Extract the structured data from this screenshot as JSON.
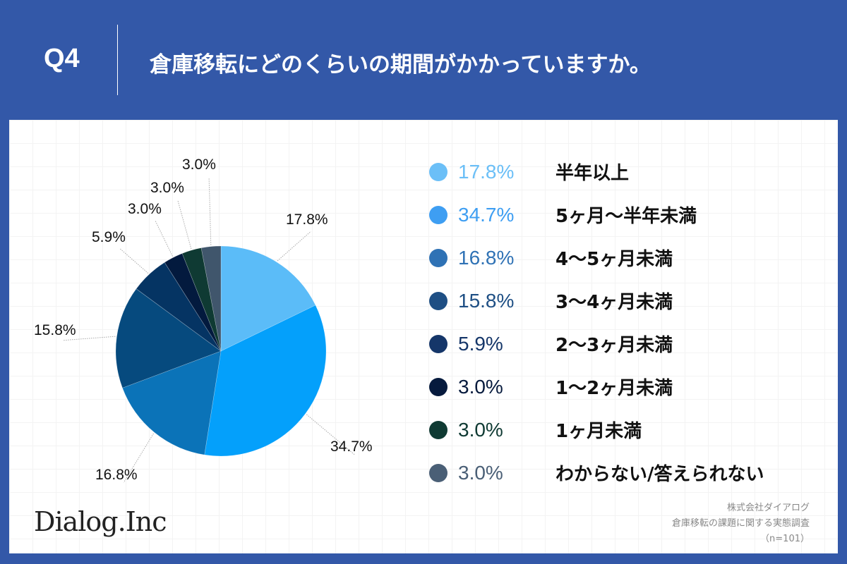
{
  "header": {
    "question_number": "Q4",
    "question_text": "倉庫移転にどのくらいの期間がかかっていますか。"
  },
  "chart_data": {
    "type": "pie",
    "title": "倉庫移転にどのくらいの期間がかかっていますか。",
    "start_angle": "12 o'clock, clockwise",
    "categories": [
      "半年以上",
      "5ヶ月〜半年未満",
      "4〜5ヶ月未満",
      "3〜4ヶ月未満",
      "2〜3ヶ月未満",
      "1〜2ヶ月未満",
      "1ヶ月未満",
      "わからない/答えられない"
    ],
    "values": [
      17.8,
      34.7,
      16.8,
      15.8,
      5.9,
      3.0,
      3.0,
      3.0
    ],
    "labels": [
      "17.8%",
      "34.7%",
      "16.8%",
      "15.8%",
      "5.9%",
      "3.0%",
      "3.0%",
      "3.0%"
    ],
    "slice_colors": [
      "#5bbcf8",
      "#04a0fb",
      "#0b73b8",
      "#064a7e",
      "#053463",
      "#031a3e",
      "#0f3a33",
      "#40566c"
    ],
    "legend_colors": [
      "#6bbff7",
      "#3e9ef2",
      "#2f72b5",
      "#1e4f84",
      "#153669",
      "#061a3d",
      "#0f3a33",
      "#4a5f76"
    ],
    "legend_position": "right",
    "n": 101
  },
  "legend": {
    "items": [
      {
        "pct": "17.8%",
        "label": "半年以上"
      },
      {
        "pct": "34.7%",
        "label": "5ヶ月〜半年未満"
      },
      {
        "pct": "16.8%",
        "label": "4〜5ヶ月未満"
      },
      {
        "pct": "15.8%",
        "label": "3〜4ヶ月未満"
      },
      {
        "pct": "5.9%",
        "label": "2〜3ヶ月未満"
      },
      {
        "pct": "3.0%",
        "label": "1〜2ヶ月未満"
      },
      {
        "pct": "3.0%",
        "label": "1ヶ月未満"
      },
      {
        "pct": "3.0%",
        "label": "わからない/答えられない"
      }
    ]
  },
  "footer": {
    "logo": "Dialog.Inc",
    "source_company": "株式会社ダイアログ",
    "source_survey": "倉庫移転の課題に関する実態調査",
    "sample_size": "（n=101）"
  }
}
